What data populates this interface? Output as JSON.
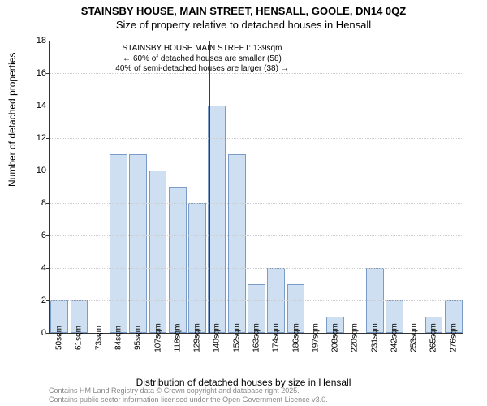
{
  "title": "STAINSBY HOUSE, MAIN STREET, HENSALL, GOOLE, DN14 0QZ",
  "subtitle": "Size of property relative to detached houses in Hensall",
  "ylabel": "Number of detached properties",
  "xlabel": "Distribution of detached houses by size in Hensall",
  "footer_line1": "Contains HM Land Registry data © Crown copyright and database right 2025.",
  "footer_line2": "Contains public sector information licensed under the Open Government Licence v3.0.",
  "chart": {
    "type": "bar",
    "ylim": [
      0,
      18
    ],
    "ytick_step": 2,
    "bar_fill": "#cddff0",
    "bar_border": "#7a9cc6",
    "grid_color": "#cccccc",
    "axis_color": "#333333",
    "background": "#ffffff",
    "categories": [
      "50sqm",
      "61sqm",
      "73sqm",
      "84sqm",
      "95sqm",
      "107sqm",
      "118sqm",
      "129sqm",
      "140sqm",
      "152sqm",
      "163sqm",
      "174sqm",
      "186sqm",
      "197sqm",
      "208sqm",
      "220sqm",
      "231sqm",
      "242sqm",
      "253sqm",
      "265sqm",
      "276sqm"
    ],
    "values": [
      2,
      2,
      0,
      11,
      11,
      10,
      9,
      8,
      14,
      11,
      3,
      4,
      3,
      0,
      1,
      0,
      4,
      2,
      0,
      1,
      2
    ],
    "marker": {
      "index": 8,
      "color": "#cc0000",
      "label_line1": "STAINSBY HOUSE MAIN STREET: 139sqm",
      "label_line2": "← 60% of detached houses are smaller (58)",
      "label_line3": "40% of semi-detached houses are larger (38) →"
    },
    "annotation_fontsize": 10,
    "xtick_fontsize": 10,
    "ytick_fontsize": 11,
    "label_fontsize": 12,
    "title_fontsize": 13
  }
}
